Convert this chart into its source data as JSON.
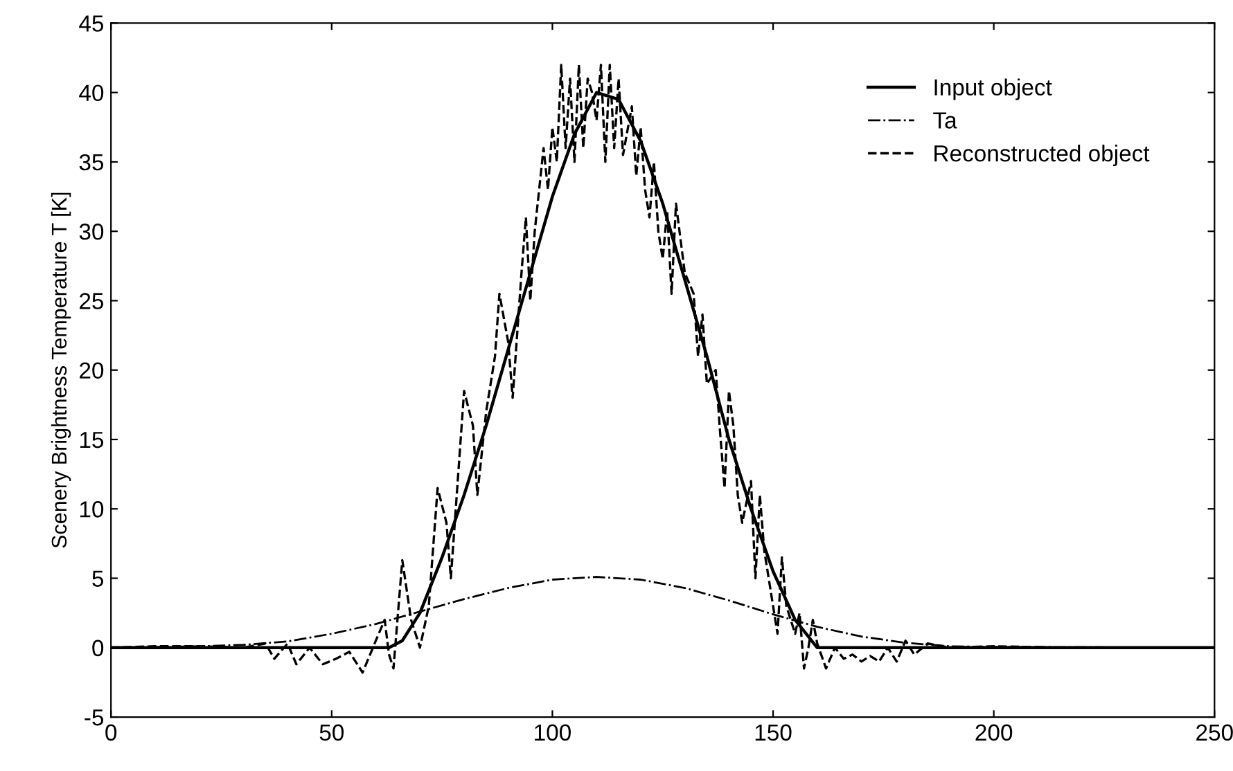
{
  "chart_data": {
    "type": "line",
    "ylabel": "Scenery Brightness Temperature T [K]",
    "xlim": [
      0,
      250
    ],
    "ylim": [
      -5,
      45
    ],
    "xticks": [
      0,
      50,
      100,
      150,
      200,
      250
    ],
    "yticks": [
      -5,
      0,
      5,
      10,
      15,
      20,
      25,
      30,
      35,
      40,
      45
    ],
    "grid": false,
    "legend": "top right",
    "series": [
      {
        "name": "Input object",
        "color": "#000000",
        "line_style": "solid",
        "x": [
          0,
          63,
          66,
          70,
          75,
          80,
          85,
          90,
          95,
          100,
          105,
          110,
          115,
          120,
          125,
          130,
          135,
          140,
          145,
          150,
          155,
          160,
          250
        ],
        "values": [
          0,
          0,
          0.5,
          2.5,
          6.5,
          11,
          16,
          21.5,
          27,
          32.5,
          37,
          40,
          39.5,
          36.5,
          32,
          26.5,
          21,
          15,
          10,
          5.5,
          2,
          0,
          0
        ]
      },
      {
        "name": "Ta",
        "color": "#000000",
        "line_style": "dashdot",
        "x": [
          0,
          20,
          30,
          40,
          50,
          60,
          70,
          80,
          90,
          100,
          110,
          120,
          130,
          140,
          150,
          160,
          170,
          180,
          190,
          200,
          250
        ],
        "values": [
          0,
          0.1,
          0.2,
          0.45,
          1,
          1.7,
          2.6,
          3.5,
          4.3,
          4.9,
          5.1,
          4.9,
          4.3,
          3.4,
          2.4,
          1.5,
          0.8,
          0.35,
          0.1,
          0.05,
          0
        ]
      },
      {
        "name": "Reconstructed object",
        "color": "#000000",
        "line_style": "dashed",
        "x": [
          0,
          10,
          20,
          30,
          35,
          37,
          40,
          42,
          45,
          48,
          51,
          54,
          57,
          60,
          62,
          63,
          64,
          66,
          68,
          70,
          72,
          74,
          76,
          77,
          79,
          80,
          82,
          83,
          85,
          87,
          88,
          90,
          91,
          93,
          94,
          95,
          96,
          98,
          99,
          100,
          101,
          102,
          103,
          104,
          105,
          106,
          107,
          108,
          109,
          110,
          111,
          112,
          113,
          114,
          115,
          116,
          118,
          119,
          120,
          121,
          122,
          123,
          124,
          125,
          126,
          127,
          128,
          130,
          132,
          133,
          134,
          135,
          137,
          138,
          139,
          140,
          141,
          142,
          143,
          145,
          146,
          147,
          148,
          150,
          151,
          152,
          153,
          155,
          156,
          157,
          158,
          159,
          160,
          162,
          164,
          166,
          168,
          170,
          172,
          174,
          176,
          178,
          180,
          182,
          185,
          190,
          200,
          215
        ],
        "values": [
          0,
          0.1,
          0.1,
          0,
          0.3,
          -0.8,
          0.3,
          -1.2,
          0,
          -1.2,
          -0.8,
          -0.3,
          -1.8,
          0.5,
          2,
          -0.5,
          -1.5,
          6.3,
          2,
          0,
          3,
          11.5,
          9,
          5,
          14,
          18.5,
          16,
          11,
          17,
          21,
          25.5,
          22,
          18,
          27,
          31,
          25,
          30,
          36,
          33,
          37.5,
          35,
          42,
          36,
          41,
          35,
          42,
          36,
          41,
          40,
          38,
          42,
          35,
          42,
          36,
          41,
          35.5,
          39,
          34,
          37.5,
          33,
          31,
          35,
          30,
          28,
          31.5,
          25.5,
          32,
          27,
          25.5,
          21,
          24,
          19,
          20,
          15.5,
          11.5,
          18.5,
          16,
          11,
          9,
          12,
          5,
          11,
          7,
          3,
          1,
          6.5,
          3,
          1,
          2.5,
          -1.5,
          0,
          2,
          0.3,
          -1.5,
          0,
          -0.8,
          -0.5,
          -1,
          -0.6,
          -1,
          0,
          -1,
          0.5,
          -0.5,
          0.3,
          0,
          0.1,
          0
        ]
      }
    ]
  }
}
